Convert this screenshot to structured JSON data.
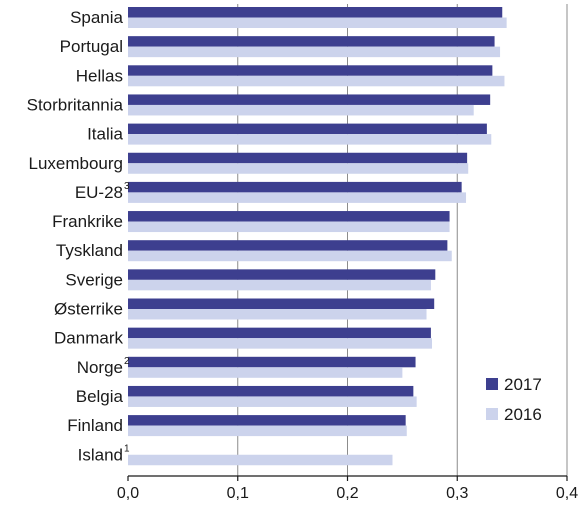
{
  "chart_data": {
    "type": "bar",
    "orientation": "horizontal",
    "categories": [
      "Spania",
      "Portugal",
      "Hellas",
      "Storbritannia",
      "Italia",
      "Luxembourg",
      "EU-28",
      "Frankrike",
      "Tyskland",
      "Sverige",
      "Østerrike",
      "Danmark",
      "Norge",
      "Belgia",
      "Finland",
      "Island"
    ],
    "category_notes": [
      "",
      "",
      "",
      "",
      "",
      "",
      "3",
      "",
      "",
      "",
      "",
      "",
      "2",
      "",
      "",
      "1"
    ],
    "series": [
      {
        "name": "2017",
        "color": "#3d3f8f",
        "values": [
          0.341,
          0.334,
          0.332,
          0.33,
          0.327,
          0.309,
          0.304,
          0.293,
          0.291,
          0.28,
          0.279,
          0.276,
          0.262,
          0.26,
          0.253,
          null
        ]
      },
      {
        "name": "2016",
        "color": "#ccd3ec",
        "values": [
          0.345,
          0.339,
          0.343,
          0.315,
          0.331,
          0.31,
          0.308,
          0.293,
          0.295,
          0.276,
          0.272,
          0.277,
          0.25,
          0.263,
          0.254,
          0.241
        ]
      }
    ],
    "xlim": [
      0,
      0.4
    ],
    "xticks": [
      0.0,
      0.1,
      0.2,
      0.3,
      0.4
    ],
    "xtick_labels": [
      "0,0",
      "0,1",
      "0,2",
      "0,3",
      "0,4"
    ],
    "grid": "vertical",
    "legend_position": "bottom-right"
  }
}
